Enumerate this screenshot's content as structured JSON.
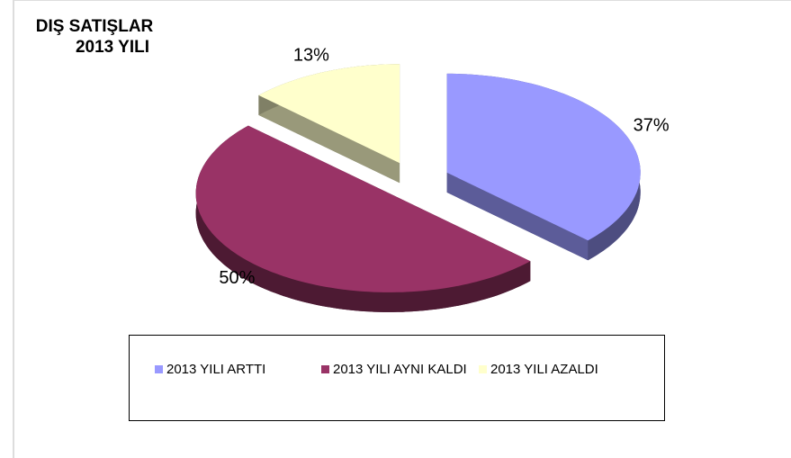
{
  "chart_data": {
    "type": "pie3d",
    "title": [
      "DIŞ SATIŞLAR",
      "2013 YILI"
    ],
    "categories": [
      "2013 YILI ARTTI",
      "2013 YILI AYNI KALDI",
      "2013 YILI AZALDI"
    ],
    "values": [
      37,
      50,
      13
    ],
    "value_labels": [
      "37%",
      "50%",
      "13%"
    ],
    "colors": [
      "#9999ff",
      "#993366",
      "#ffffcc"
    ],
    "legend": "bottom"
  }
}
